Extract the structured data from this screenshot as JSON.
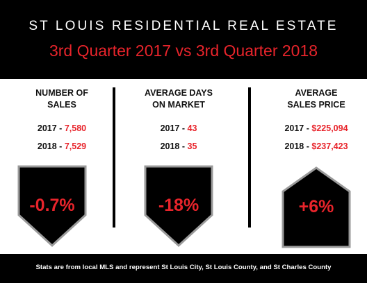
{
  "header": {
    "title": "ST LOUIS RESIDENTIAL REAL ESTATE",
    "subtitle": "3rd Quarter 2017 vs 3rd Quarter 2018"
  },
  "colors": {
    "accent_red": "#e8242b",
    "background_dark": "#000000",
    "shape_border": "#9a9a9a"
  },
  "stats": [
    {
      "heading_line1": "NUMBER OF",
      "heading_line2": "SALES",
      "year1_label": "2017 -",
      "year1_value": "7,580",
      "year2_label": "2018 -",
      "year2_value": "7,529",
      "change": "-0.7%",
      "direction": "down"
    },
    {
      "heading_line1": "AVERAGE DAYS",
      "heading_line2": "ON MARKET",
      "year1_label": "2017 -",
      "year1_value": "43",
      "year2_label": "2018 -",
      "year2_value": "35",
      "change": "-18%",
      "direction": "down"
    },
    {
      "heading_line1": "AVERAGE",
      "heading_line2": "SALES PRICE",
      "year1_label": "2017 -",
      "year1_value": "$225,094",
      "year2_label": "2018 -",
      "year2_value": "$237,423",
      "change": "+6%",
      "direction": "up"
    }
  ],
  "footer": {
    "note": "Stats are from local MLS and represent St Louis City, St Louis County, and St Charles County"
  }
}
